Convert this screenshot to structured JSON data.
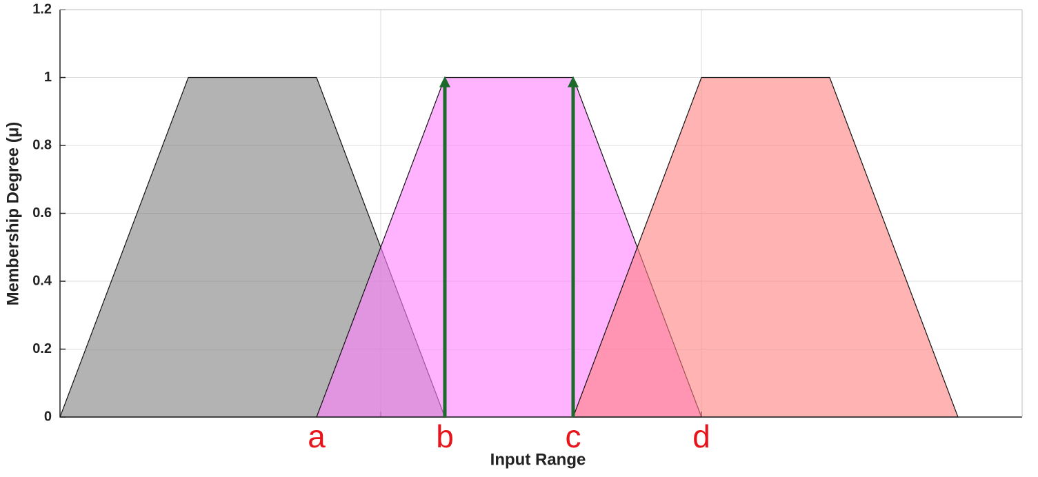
{
  "chart_data": {
    "type": "area",
    "xlabel": "Input Range",
    "ylabel": "Membership Degree (μ)",
    "xlim": [
      0,
      7.5
    ],
    "xticks": [
      2.5,
      5
    ],
    "show_xtick_labels": false,
    "ylim": [
      0,
      1.2
    ],
    "yticks": [
      0,
      0.2,
      0.4,
      0.6,
      0.8,
      1,
      1.2
    ],
    "grid": true,
    "series": [
      {
        "color": "#808080",
        "x": [
          0,
          1,
          2,
          3
        ],
        "values": [
          0,
          1,
          1,
          0
        ]
      },
      {
        "color": "#ff80ff",
        "x": [
          2,
          3,
          4,
          5
        ],
        "values": [
          0,
          1,
          1,
          0
        ]
      },
      {
        "color": "#ff8080",
        "x": [
          4,
          5,
          6,
          7
        ],
        "values": [
          0,
          1,
          1,
          0
        ]
      }
    ],
    "arrows": [
      {
        "x": 3,
        "y_start": 0,
        "y_end": 1,
        "color": "#1d6b2b"
      },
      {
        "x": 4,
        "y_start": 0,
        "y_end": 1,
        "color": "#1d6b2b"
      }
    ],
    "annotations": [
      {
        "text": "a",
        "x": 2,
        "color": "#e8141b"
      },
      {
        "text": "b",
        "x": 3,
        "color": "#e8141b"
      },
      {
        "text": "c",
        "x": 4,
        "color": "#e8141b"
      },
      {
        "text": "d",
        "x": 5,
        "color": "#e8141b"
      }
    ]
  }
}
